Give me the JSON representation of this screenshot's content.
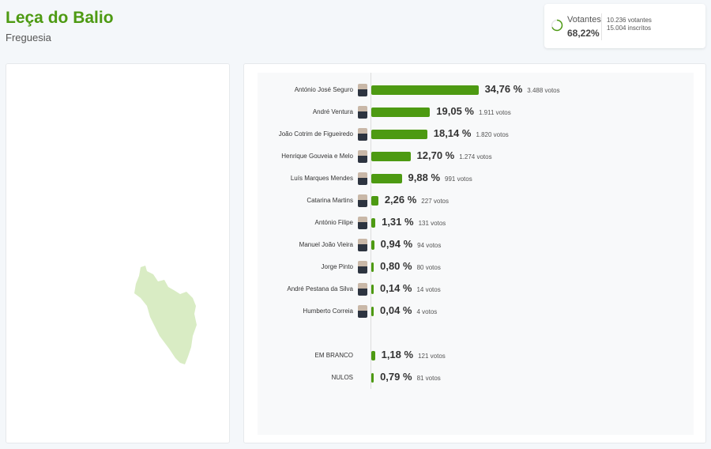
{
  "header": {
    "title": "Leça do Balio",
    "subtitle": "Freguesia"
  },
  "turnout": {
    "label": "Votantes",
    "percent": "68,22%",
    "percent_value": 68.22,
    "voters": "10.236 votantes",
    "registered": "15.004 inscritos",
    "accent": "#4d9a12"
  },
  "map": {
    "fill": "#d9ecc4"
  },
  "results": {
    "bar_color": "#4d9a12",
    "candidates": [
      {
        "name": "António José Seguro",
        "pct": "34,76 %",
        "value": 34.76,
        "votes": "3.488 votos"
      },
      {
        "name": "André Ventura",
        "pct": "19,05 %",
        "value": 19.05,
        "votes": "1.911 votos"
      },
      {
        "name": "João Cotrim de Figueiredo",
        "pct": "18,14 %",
        "value": 18.14,
        "votes": "1.820 votos"
      },
      {
        "name": "Henrique Gouveia e Melo",
        "pct": "12,70 %",
        "value": 12.7,
        "votes": "1.274 votos"
      },
      {
        "name": "Luís Marques Mendes",
        "pct": "9,88 %",
        "value": 9.88,
        "votes": "991 votos"
      },
      {
        "name": "Catarina Martins",
        "pct": "2,26 %",
        "value": 2.26,
        "votes": "227 votos"
      },
      {
        "name": "António Filipe",
        "pct": "1,31 %",
        "value": 1.31,
        "votes": "131 votos"
      },
      {
        "name": "Manuel João Vieira",
        "pct": "0,94 %",
        "value": 0.94,
        "votes": "94 votos"
      },
      {
        "name": "Jorge Pinto",
        "pct": "0,80 %",
        "value": 0.8,
        "votes": "80 votos"
      },
      {
        "name": "André Pestana da Silva",
        "pct": "0,14 %",
        "value": 0.14,
        "votes": "14 votos"
      },
      {
        "name": "Humberto Correia",
        "pct": "0,04 %",
        "value": 0.04,
        "votes": "4 votos"
      }
    ],
    "other": [
      {
        "name": "EM BRANCO",
        "pct": "1,18 %",
        "value": 1.18,
        "votes": "121 votos"
      },
      {
        "name": "NULOS",
        "pct": "0,79 %",
        "value": 0.79,
        "votes": "81 votos"
      }
    ]
  }
}
